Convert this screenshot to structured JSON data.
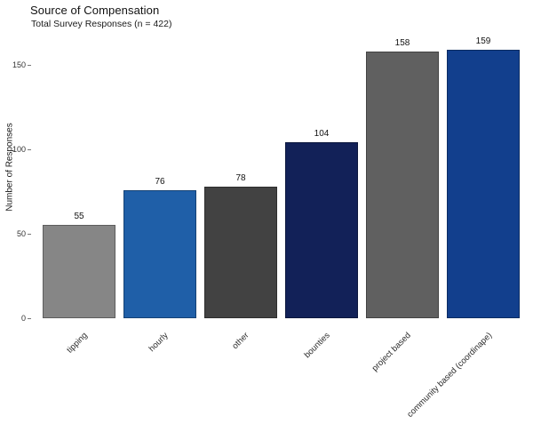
{
  "chart_data": {
    "type": "bar",
    "title": "Source of Compensation",
    "subtitle": "Total Survey Responses (n = 422)",
    "xlabel": "",
    "ylabel": "Number of Responses",
    "categories": [
      "tipping",
      "hourly",
      "other",
      "bounties",
      "project based",
      "community based (coordinape)"
    ],
    "values": [
      55,
      76,
      78,
      104,
      158,
      159
    ],
    "bar_value_labels": [
      "55",
      "76",
      "78",
      "104",
      "158",
      "159"
    ],
    "bar_colors": [
      "#868686",
      "#1f5fa8",
      "#424242",
      "#122158",
      "#606060",
      "#123f8d"
    ],
    "yticks": [
      0,
      50,
      100,
      150
    ],
    "ylim": [
      0,
      166
    ],
    "grid": false,
    "legend": "none",
    "axis_spines": "none",
    "x_label_rotation_deg": 45
  }
}
